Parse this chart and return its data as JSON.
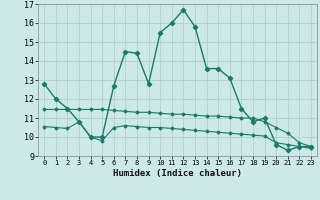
{
  "xlabel": "Humidex (Indice chaleur)",
  "bg_color": "#cce8e8",
  "grid_color": "#aacccc",
  "line_color": "#1a7a6a",
  "xlim": [
    -0.5,
    23.5
  ],
  "ylim": [
    9,
    17
  ],
  "xticks": [
    0,
    1,
    2,
    3,
    4,
    5,
    6,
    7,
    8,
    9,
    10,
    11,
    12,
    13,
    14,
    15,
    16,
    17,
    18,
    19,
    20,
    21,
    22,
    23
  ],
  "yticks": [
    9,
    10,
    11,
    12,
    13,
    14,
    15,
    16,
    17
  ],
  "series1_x": [
    0,
    1,
    2,
    3,
    4,
    5,
    6,
    7,
    8,
    9,
    10,
    11,
    12,
    13,
    14,
    15,
    16,
    17,
    18,
    19,
    20,
    21,
    22,
    23
  ],
  "series1_y": [
    12.8,
    12.0,
    11.5,
    10.8,
    10.0,
    10.0,
    12.7,
    14.5,
    14.4,
    12.8,
    15.5,
    16.0,
    16.7,
    15.8,
    13.6,
    13.6,
    13.1,
    11.5,
    10.8,
    11.0,
    9.6,
    9.3,
    9.5,
    9.5
  ],
  "series2_x": [
    0,
    1,
    2,
    3,
    4,
    5,
    6,
    7,
    8,
    9,
    10,
    11,
    12,
    13,
    14,
    15,
    16,
    17,
    18,
    19,
    20,
    21,
    22,
    23
  ],
  "series2_y": [
    11.45,
    11.45,
    11.45,
    11.45,
    11.45,
    11.45,
    11.4,
    11.35,
    11.3,
    11.3,
    11.25,
    11.2,
    11.2,
    11.15,
    11.1,
    11.1,
    11.05,
    11.0,
    11.0,
    10.8,
    10.5,
    10.2,
    9.7,
    9.5
  ],
  "series3_x": [
    0,
    1,
    2,
    3,
    4,
    5,
    6,
    7,
    8,
    9,
    10,
    11,
    12,
    13,
    14,
    15,
    16,
    17,
    18,
    19,
    20,
    21,
    22,
    23
  ],
  "series3_y": [
    10.55,
    10.5,
    10.45,
    10.8,
    10.0,
    9.8,
    10.5,
    10.6,
    10.55,
    10.5,
    10.5,
    10.45,
    10.4,
    10.35,
    10.3,
    10.25,
    10.2,
    10.15,
    10.1,
    10.05,
    9.7,
    9.6,
    9.5,
    9.4
  ]
}
